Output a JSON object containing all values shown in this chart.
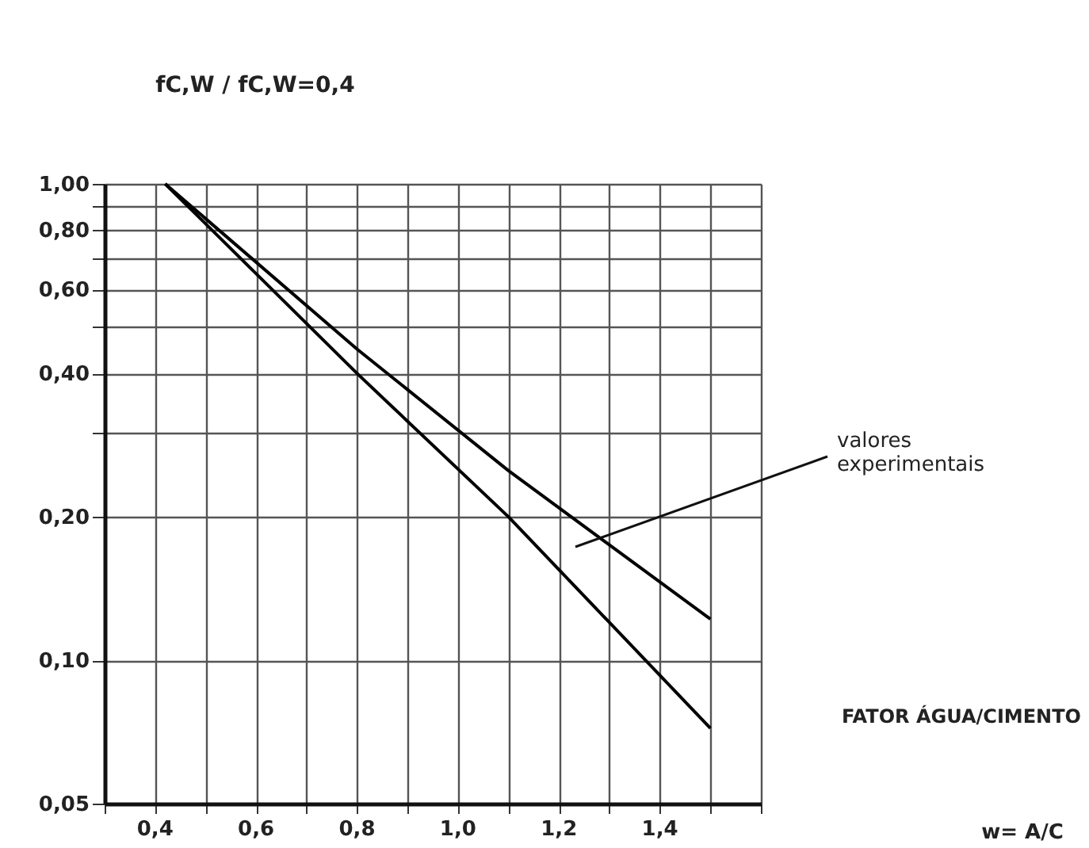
{
  "chart_data": {
    "type": "line",
    "ylabel": "fC,W / fC,W=0,4",
    "xlabel": "FATOR ÁGUA/CIMENTO",
    "log": "y",
    "grid": true,
    "xlim": [
      0.3,
      1.6
    ],
    "xticks": [
      {
        "value": 0.3,
        "label": null
      },
      {
        "value": 0.4,
        "label": "0,4"
      },
      {
        "value": 0.5,
        "label": null
      },
      {
        "value": 0.6,
        "label": "0,6"
      },
      {
        "value": 0.7,
        "label": null
      },
      {
        "value": 0.8,
        "label": "0,8"
      },
      {
        "value": 0.9,
        "label": null
      },
      {
        "value": 1.0,
        "label": "1,0"
      },
      {
        "value": 1.1,
        "label": null
      },
      {
        "value": 1.2,
        "label": "1,2"
      },
      {
        "value": 1.3,
        "label": null
      },
      {
        "value": 1.4,
        "label": "1,4"
      },
      {
        "value": 1.5,
        "label": null
      },
      {
        "value": 1.6,
        "label": null
      }
    ],
    "ylim": [
      0.05,
      1.0
    ],
    "yticks": [
      {
        "value": 0.05,
        "label": "0,05"
      },
      {
        "value": 0.1,
        "label": "0,10"
      },
      {
        "value": 0.2,
        "label": "0,20"
      },
      {
        "value": 0.3,
        "label": null
      },
      {
        "value": 0.4,
        "label": "0,40"
      },
      {
        "value": 0.5,
        "label": null
      },
      {
        "value": 0.6,
        "label": "0,60"
      },
      {
        "value": 0.7,
        "label": null
      },
      {
        "value": 0.8,
        "label": "0,80"
      },
      {
        "value": 0.9,
        "label": null
      },
      {
        "value": 1.0,
        "label": "1,00"
      }
    ],
    "series": [
      {
        "color": "#000000",
        "x": [
          0.42,
          0.8,
          1.1,
          1.5
        ],
        "values": [
          1.0,
          0.4,
          0.2,
          0.072
        ]
      },
      {
        "color": "#000000",
        "x": [
          0.42,
          0.8,
          1.1,
          1.5
        ],
        "values": [
          1.0,
          0.45,
          0.25,
          0.122
        ]
      }
    ],
    "annotations": [
      "valores experimentais",
      "w= A/C"
    ]
  }
}
